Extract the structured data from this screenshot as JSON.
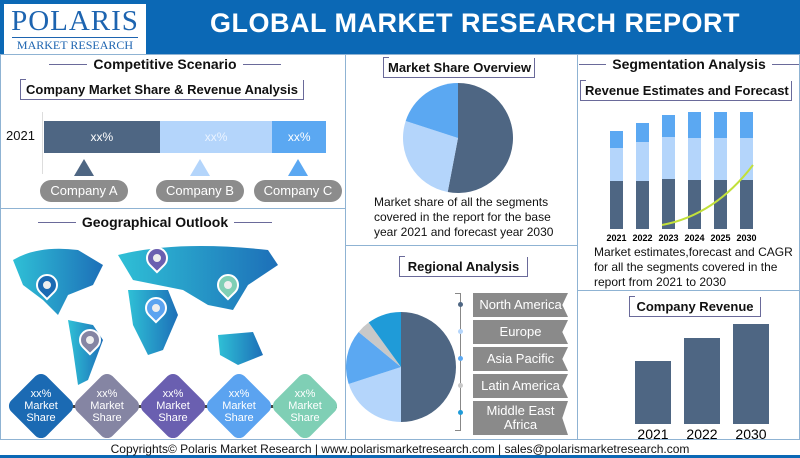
{
  "header": {
    "logo_top": "POLARIS",
    "logo_bottom": "MARKET RESEARCH",
    "title": "GLOBAL MARKET RESEARCH REPORT",
    "color": "#0b68b5"
  },
  "competitive": {
    "title": "Competitive Scenario",
    "subtitle": "Company Market Share & Revenue Analysis",
    "year": "2021",
    "segments": [
      {
        "label": "xx%",
        "share": 41,
        "color": "#4e6683"
      },
      {
        "label": "xx%",
        "share": 40,
        "color": "#b4d5fb"
      },
      {
        "label": "xx%",
        "share": 19,
        "color": "#5ba8f2"
      }
    ],
    "companies": [
      "Company A",
      "Company B",
      "Company C"
    ]
  },
  "market_share": {
    "title": "Market Share Overview",
    "description": "Market share of all the segments covered in the report for the base year 2021 and forecast year 2030",
    "slices": [
      {
        "value": 53,
        "color": "#4e6683"
      },
      {
        "value": 27,
        "color": "#b4d5fb"
      },
      {
        "value": 20,
        "color": "#5ba8f2"
      }
    ]
  },
  "segmentation": {
    "title": "Segmentation Analysis",
    "subtitle": "Revenue Estimates and Forecast",
    "description": "Market estimates,forecast and CAGR for all the segments covered in the report from 2021 to 2030",
    "chart_data": {
      "type": "bar",
      "stacked": true,
      "categories": [
        "2021",
        "2022",
        "2023",
        "2024",
        "2025",
        "2030"
      ],
      "series": [
        {
          "values": [
            48,
            48,
            50,
            49,
            49,
            49
          ],
          "color": "#4e6683"
        },
        {
          "values": [
            33,
            39,
            42,
            42,
            42,
            42
          ],
          "color": "#b4d5fb"
        },
        {
          "values": [
            17,
            19,
            22,
            26,
            26,
            26
          ],
          "color": "#5ba8f2"
        }
      ],
      "trend_color": "#c2e03a"
    }
  },
  "geo": {
    "title": "Geographical Outlook",
    "markers": [
      {
        "top": "xx%",
        "mid": "Market",
        "bot": "Share",
        "color": "#1b6ab3"
      },
      {
        "top": "xx%",
        "mid": "Market",
        "bot": "Share",
        "color": "#8585a3"
      },
      {
        "top": "xx%",
        "mid": "Market",
        "bot": "Share",
        "color": "#6a5fb0"
      },
      {
        "top": "xx%",
        "mid": "Market",
        "bot": "Share",
        "color": "#5ba3f0"
      },
      {
        "top": "xx%",
        "mid": "Market",
        "bot": "Share",
        "color": "#7fcfb5"
      }
    ]
  },
  "regional": {
    "title": "Regional Analysis",
    "regions": [
      "North America",
      "Europe",
      "Asia Pacific",
      "Latin America",
      "Middle East Africa"
    ],
    "slices": [
      {
        "value": 50,
        "color": "#4e6683"
      },
      {
        "value": 20,
        "color": "#b4d5fb"
      },
      {
        "value": 16,
        "color": "#5ba8f2"
      },
      {
        "value": 4,
        "color": "#c8c8c8"
      },
      {
        "value": 10,
        "color": "#1f9bd8"
      }
    ]
  },
  "company_revenue": {
    "title": "Company Revenue",
    "chart_data": {
      "type": "bar",
      "categories": [
        "2021",
        "2022",
        "2030"
      ],
      "values": [
        63,
        86,
        100
      ],
      "color": "#4e6683"
    }
  },
  "footer": "Copyrights© Polaris Market Research | www.polarismarketresearch.com | sales@polarismarketresearch.com"
}
